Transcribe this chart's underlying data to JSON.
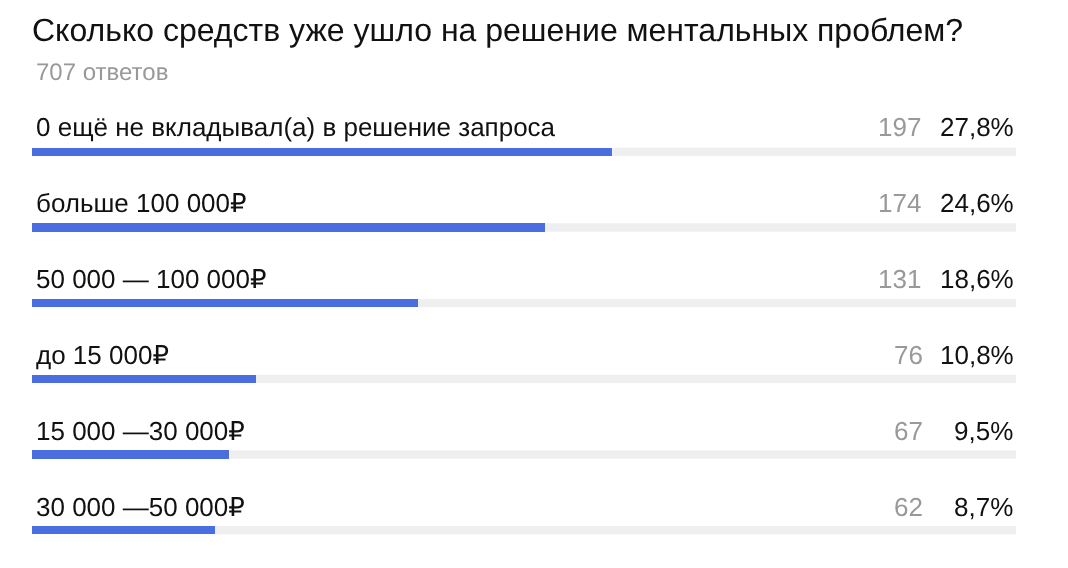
{
  "chart_data": {
    "type": "bar",
    "orientation": "horizontal",
    "title": "Сколько средств уже ушло на решение ментальных проблем?",
    "subtitle": "707 ответов",
    "categories": [
      "0 ещё не вкладывал(а) в решение запроса",
      "больше 100 000₽",
      "50 000 — 100 000₽",
      "до 15 000₽",
      "15 000 —30 000₽",
      "30 000 —50 000₽"
    ],
    "values": [
      197,
      174,
      131,
      76,
      67,
      62
    ],
    "color": "#4a6ee0",
    "data_labels": true,
    "xlim": [
      0,
      334
    ],
    "tick_labels": false,
    "grid": false,
    "annotations": [
      "27,8%",
      "24,6%",
      "18,6%",
      "10,8%",
      "9,5%",
      "8,7%"
    ]
  }
}
